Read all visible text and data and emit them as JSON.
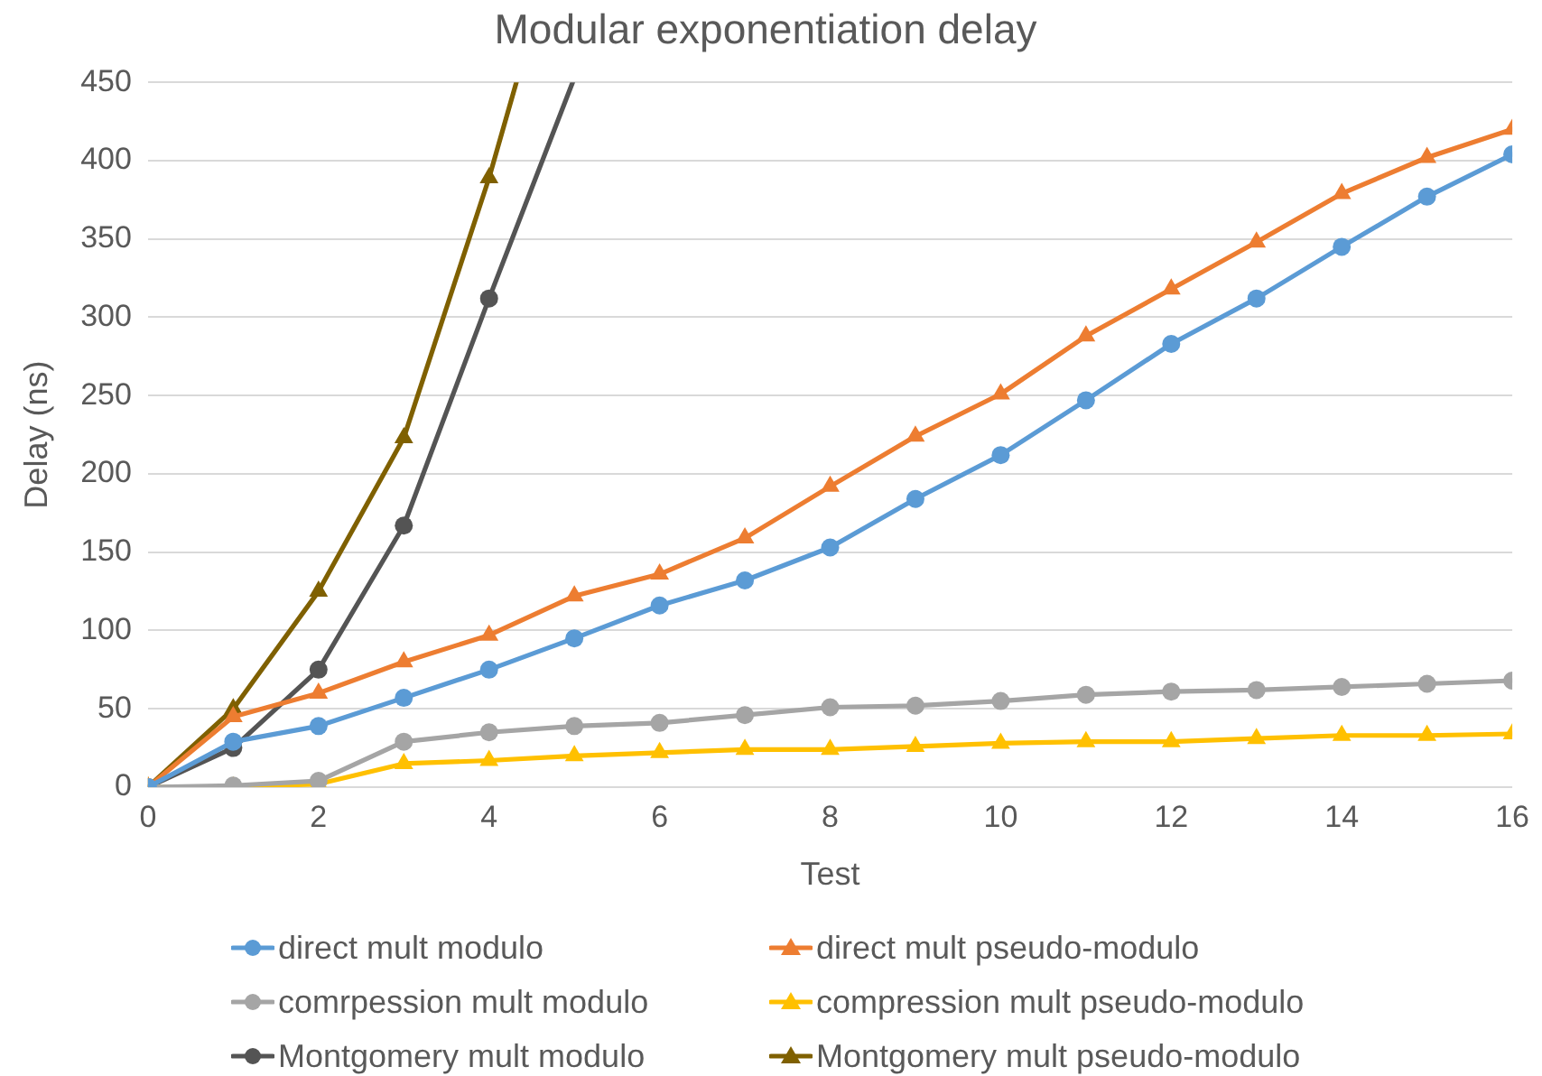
{
  "chart_data": {
    "type": "line",
    "title": "Modular exponentiation delay",
    "xlabel": "Test",
    "ylabel": "Delay (ns)",
    "x": [
      0,
      1,
      2,
      3,
      4,
      5,
      6,
      7,
      8,
      9,
      10,
      11,
      12,
      13,
      14,
      15,
      16
    ],
    "xlim": [
      0,
      16
    ],
    "xticks": [
      0,
      2,
      4,
      6,
      8,
      10,
      12,
      14,
      16
    ],
    "ylim": [
      0,
      450
    ],
    "yticks": [
      0,
      50,
      100,
      150,
      200,
      250,
      300,
      350,
      400,
      450
    ],
    "grid": "y",
    "legend": "bottom",
    "line_style": "solid",
    "series": [
      {
        "name": "direct mult modulo",
        "color": "#5b9bd5",
        "marker": "circle",
        "values": [
          0,
          29,
          39,
          57,
          75,
          95,
          116,
          132,
          153,
          184,
          212,
          247,
          283,
          312,
          345,
          377,
          404
        ]
      },
      {
        "name": "direct mult pseudo-modulo",
        "color": "#ed7d31",
        "marker": "triangle",
        "values": [
          0,
          45,
          60,
          80,
          97,
          122,
          136,
          159,
          192,
          224,
          251,
          288,
          318,
          348,
          379,
          402,
          420
        ]
      },
      {
        "name": "comrpession mult modulo",
        "color": "#a5a5a5",
        "marker": "circle",
        "values": [
          0,
          1,
          4,
          29,
          35,
          39,
          41,
          46,
          51,
          52,
          55,
          59,
          61,
          62,
          64,
          66,
          68
        ]
      },
      {
        "name": "compression mult pseudo-modulo",
        "color": "#ffc000",
        "marker": "triangle",
        "values": [
          0,
          0,
          2,
          15,
          17,
          20,
          22,
          24,
          24,
          26,
          28,
          29,
          29,
          31,
          33,
          33,
          34
        ]
      },
      {
        "name": "Montgomery mult modulo",
        "color": "#545454",
        "marker": "circle",
        "x": [
          0,
          1,
          2,
          3,
          4,
          4.98
        ],
        "values": [
          0,
          25,
          75,
          167,
          312,
          450
        ]
      },
      {
        "name": "Montgomery mult pseudo-modulo",
        "color": "#7f6000",
        "marker": "triangle",
        "x": [
          0,
          1,
          2,
          3,
          4,
          4.32
        ],
        "values": [
          0,
          50,
          125,
          223,
          389,
          450
        ]
      }
    ]
  }
}
